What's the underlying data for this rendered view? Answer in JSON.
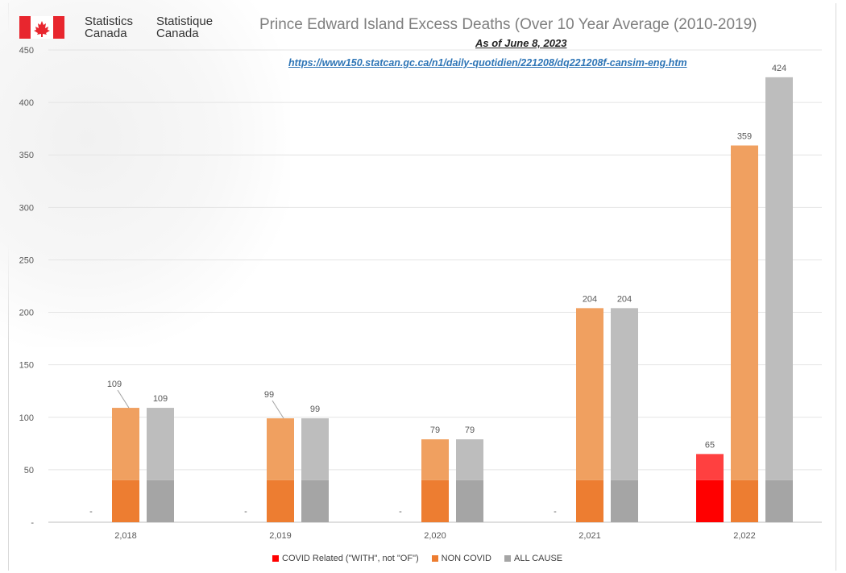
{
  "header": {
    "brand_en_1": "Statistics",
    "brand_en_2": "Canada",
    "brand_fr_1": "Statistique",
    "brand_fr_2": "Canada",
    "logo_icon": "canada-flag-icon"
  },
  "chart_data": {
    "type": "bar",
    "title": "Prince Edward Island Excess Deaths (Over 10 Year Average (2010-2019)",
    "subtitle": "As of June 8, 2023",
    "source_url": "https://www150.statcan.gc.ca/n1/daily-quotidien/221208/dq221208f-cansim-eng.htm",
    "categories": [
      "2,018",
      "2,019",
      "2,020",
      "2,021",
      "2,022"
    ],
    "series": [
      {
        "name": "COVID Related (\"WITH\", not \"OF\")",
        "values": [
          0,
          0,
          0,
          0,
          65
        ],
        "labels": [
          "-",
          "-",
          "-",
          "-",
          "65"
        ],
        "color": "#ff0000",
        "light_color": "#ff4040"
      },
      {
        "name": "NON COVID",
        "values": [
          109,
          99,
          79,
          204,
          359
        ],
        "labels": [
          "109",
          "99",
          "79",
          "204",
          "359"
        ],
        "color": "#ed7d31",
        "light_color": "#f0a060"
      },
      {
        "name": "ALL CAUSE",
        "values": [
          109,
          99,
          79,
          204,
          424
        ],
        "labels": [
          "109",
          "99",
          "79",
          "204",
          "424"
        ],
        "color": "#a5a5a5",
        "light_color": "#bdbdbd"
      }
    ],
    "yticks": [
      "-",
      "50",
      "100",
      "150",
      "200",
      "250",
      "300",
      "350",
      "400",
      "450"
    ],
    "ylim": [
      0,
      450
    ],
    "band_level": 40,
    "grid": true,
    "legend_position": "bottom"
  }
}
